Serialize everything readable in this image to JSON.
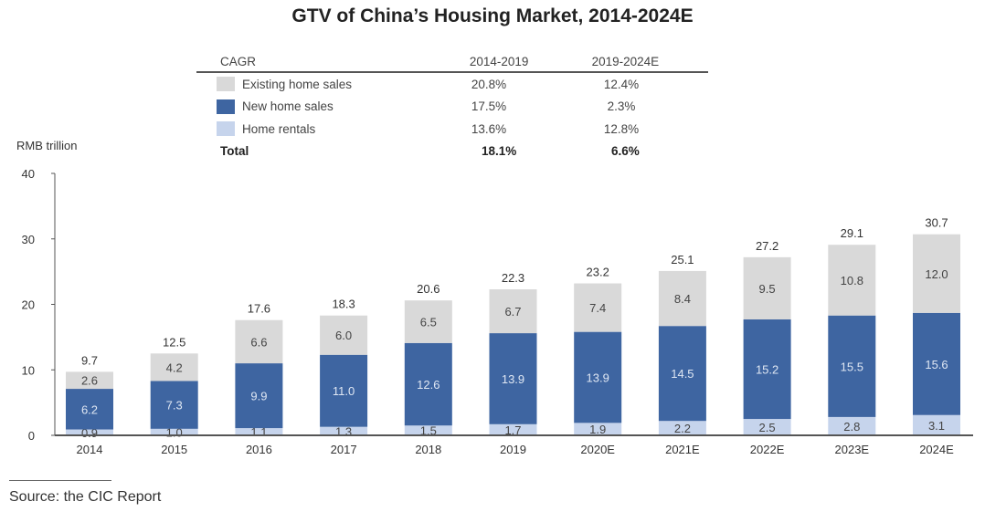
{
  "chart_data": {
    "type": "bar",
    "stacked": true,
    "title": "GTV of China’s Housing Market, 2014-2024E",
    "ylabel": "RMB trillion",
    "ylim": [
      0,
      40
    ],
    "yticks": [
      0,
      10,
      20,
      30,
      40
    ],
    "grid": false,
    "categories": [
      "2014",
      "2015",
      "2016",
      "2017",
      "2018",
      "2019",
      "2020E",
      "2021E",
      "2022E",
      "2023E",
      "2024E"
    ],
    "series": [
      {
        "name": "Home rentals",
        "color": "#c6d4ec",
        "values": [
          0.9,
          1.0,
          1.1,
          1.3,
          1.5,
          1.7,
          1.9,
          2.2,
          2.5,
          2.8,
          3.1
        ]
      },
      {
        "name": "New home sales",
        "color": "#3e65a1",
        "values": [
          6.2,
          7.3,
          9.9,
          11.0,
          12.6,
          13.9,
          13.9,
          14.5,
          15.2,
          15.5,
          15.6
        ]
      },
      {
        "name": "Existing home sales",
        "color": "#d9d9d9",
        "values": [
          2.6,
          4.2,
          6.6,
          6.0,
          6.5,
          6.7,
          7.4,
          8.4,
          9.5,
          10.8,
          12.0
        ]
      }
    ],
    "totals": [
      9.7,
      12.5,
      17.6,
      18.3,
      20.6,
      22.3,
      23.2,
      25.1,
      27.2,
      29.1,
      30.7
    ],
    "legend_placement": "top-center (CAGR table)"
  },
  "cagr_table": {
    "headers": [
      "CAGR",
      "2014-2019",
      "2019-2024E"
    ],
    "rows": [
      {
        "label": "Existing home sales",
        "color": "#d9d9d9",
        "p1": "20.8%",
        "p2": "12.4%"
      },
      {
        "label": "New home sales",
        "color": "#3e65a1",
        "p1": "17.5%",
        "p2": "2.3%"
      },
      {
        "label": "Home rentals",
        "color": "#c6d4ec",
        "p1": "13.6%",
        "p2": "12.8%"
      }
    ],
    "total": {
      "label": "Total",
      "p1": "18.1%",
      "p2": "6.6%"
    }
  },
  "source": "Source: the CIC Report"
}
